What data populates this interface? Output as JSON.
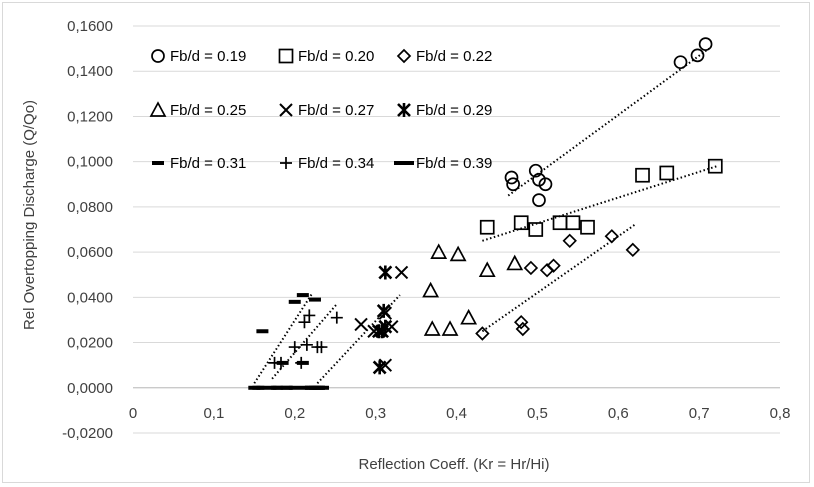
{
  "chart_data": {
    "type": "scatter",
    "title": "",
    "xlabel": "Reflection Coeff. (Kr = Hr/Hi)",
    "ylabel": "Rel Overtopping Discharge (Q/Qo)",
    "xlim": [
      0,
      0.8
    ],
    "ylim": [
      -0.02,
      0.16
    ],
    "x_ticks": [
      "0",
      "0,1",
      "0,2",
      "0,3",
      "0,4",
      "0,5",
      "0,6",
      "0,7",
      "0,8"
    ],
    "x_tick_values": [
      0,
      0.1,
      0.2,
      0.3,
      0.4,
      0.5,
      0.6,
      0.7,
      0.8
    ],
    "y_ticks": [
      "-0,0200",
      "0,0000",
      "0,0200",
      "0,0400",
      "0,0600",
      "0,0800",
      "0,1000",
      "0,1200",
      "0,1400",
      "0,1600"
    ],
    "y_tick_values": [
      -0.02,
      0,
      0.02,
      0.04,
      0.06,
      0.08,
      0.1,
      0.12,
      0.14,
      0.16
    ],
    "grid": "horizontal",
    "legend_position": "top-left",
    "series": [
      {
        "name": "Fb/d = 0.19",
        "marker": "circle",
        "x": [
          0.468,
          0.47,
          0.498,
          0.502,
          0.51,
          0.502,
          0.677,
          0.698,
          0.708
        ],
        "y": [
          0.093,
          0.09,
          0.096,
          0.092,
          0.09,
          0.083,
          0.144,
          0.147,
          0.152
        ],
        "trend": [
          [
            0.464,
            0.085
          ],
          [
            0.712,
            0.15
          ]
        ]
      },
      {
        "name": "Fb/d = 0.20",
        "marker": "square",
        "x": [
          0.438,
          0.48,
          0.498,
          0.528,
          0.544,
          0.562,
          0.63,
          0.66,
          0.72
        ],
        "y": [
          0.071,
          0.073,
          0.07,
          0.073,
          0.073,
          0.071,
          0.094,
          0.095,
          0.098
        ],
        "trend": [
          [
            0.432,
            0.065
          ],
          [
            0.722,
            0.098
          ]
        ]
      },
      {
        "name": "Fb/d = 0.22",
        "marker": "diamond",
        "x": [
          0.432,
          0.48,
          0.482,
          0.492,
          0.512,
          0.52,
          0.54,
          0.592,
          0.618
        ],
        "y": [
          0.024,
          0.029,
          0.026,
          0.053,
          0.052,
          0.054,
          0.065,
          0.067,
          0.061
        ],
        "trend": [
          [
            0.432,
            0.025
          ],
          [
            0.62,
            0.072
          ]
        ]
      },
      {
        "name": "Fb/d = 0.25",
        "marker": "triangle",
        "x": [
          0.368,
          0.37,
          0.378,
          0.392,
          0.402,
          0.415,
          0.438,
          0.472
        ],
        "y": [
          0.043,
          0.026,
          0.06,
          0.026,
          0.059,
          0.031,
          0.052,
          0.055
        ],
        "trend": null
      },
      {
        "name": "Fb/d = 0.27",
        "marker": "x",
        "x": [
          0.282,
          0.298,
          0.312,
          0.312,
          0.32,
          0.332,
          0.312
        ],
        "y": [
          0.028,
          0.025,
          0.01,
          0.051,
          0.027,
          0.051,
          0.033
        ],
        "trend": null
      },
      {
        "name": "Fb/d = 0.29",
        "marker": "asterisk",
        "x": [
          0.305,
          0.308,
          0.312,
          0.31,
          0.312,
          0.304
        ],
        "y": [
          0.009,
          0.025,
          0.027,
          0.034,
          0.051,
          0.025
        ],
        "trend": [
          [
            0.228,
            0.002
          ],
          [
            0.33,
            0.041
          ]
        ]
      },
      {
        "name": "Fb/d = 0.31",
        "marker": "short-dash",
        "x": [
          0.15,
          0.155,
          0.16,
          0.178,
          0.185,
          0.19,
          0.2,
          0.21,
          0.22,
          0.225,
          0.23,
          0.21,
          0.225,
          0.228
        ],
        "y": [
          0.0,
          0.0,
          0.025,
          0.0,
          0.011,
          0.0,
          0.038,
          0.041,
          0.0,
          0.0,
          0.0,
          0.011,
          0.039,
          0.0
        ],
        "trend": [
          [
            0.15,
            0.002
          ],
          [
            0.222,
            0.042
          ]
        ]
      },
      {
        "name": "Fb/d = 0.34",
        "marker": "plus",
        "x": [
          0.175,
          0.183,
          0.2,
          0.212,
          0.218,
          0.228,
          0.233,
          0.208,
          0.252,
          0.215
        ],
        "y": [
          0.011,
          0.011,
          0.018,
          0.029,
          0.032,
          0.018,
          0.018,
          0.011,
          0.031,
          0.019
        ],
        "trend": [
          [
            0.172,
            0.004
          ],
          [
            0.252,
            0.037
          ]
        ]
      },
      {
        "name": "Fb/d = 0.39",
        "marker": "long-dash",
        "x": [
          0.165,
          0.185,
          0.205,
          0.225,
          0.23
        ],
        "y": [
          0.0,
          0.0,
          0.0,
          0.0,
          0.0
        ],
        "trend": null
      }
    ]
  }
}
